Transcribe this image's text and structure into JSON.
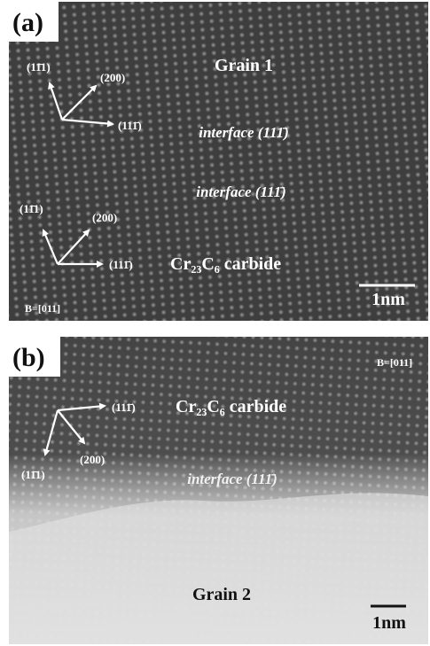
{
  "panel_a": {
    "label": "(a)",
    "grain": "Grain 1",
    "directions": [
      "(11̄1)",
      "(200)",
      "(111̄)",
      "(11̄1)",
      "(200)",
      "(111̄)"
    ],
    "interfaces": [
      "interface (111̄)",
      "interface (111̄)"
    ],
    "carbide": "Cr₂₃C₆ carbide",
    "beam": "B=[011]",
    "scale_bar": "1nm"
  },
  "panel_b": {
    "label": "(b)",
    "grain": "Grain 2",
    "directions": [
      "(111̄)",
      "(11̄1)",
      "(200)"
    ],
    "interfaces": [
      "interface (111̄)"
    ],
    "carbide": "Cr₂₃C₆ carbide",
    "beam": "B=[011]",
    "scale_bar": "1nm"
  }
}
